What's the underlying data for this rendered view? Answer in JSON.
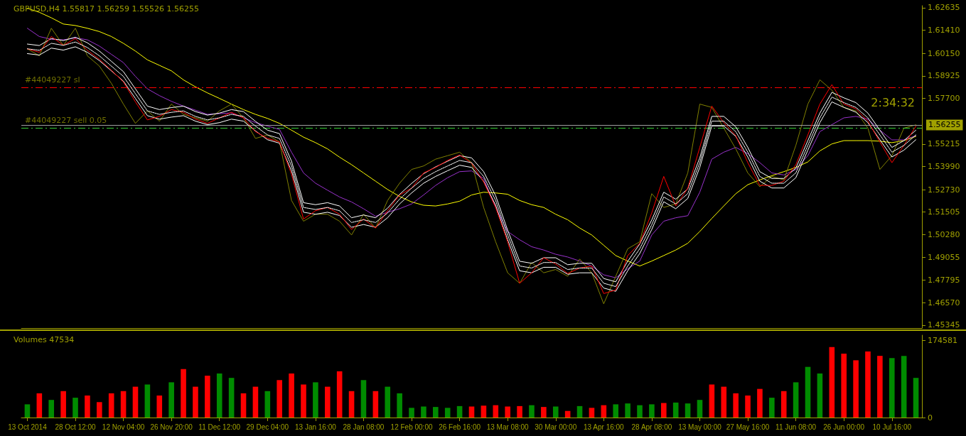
{
  "chart_data": [
    {
      "type": "line",
      "title": "GBPUSD,H4 1.55817 1.56259 1.55526 1.56255",
      "categories": [
        null,
        null,
        null,
        null,
        null,
        null,
        null,
        null,
        null,
        null,
        null,
        null,
        null,
        null,
        null,
        null,
        null,
        null,
        null,
        null,
        null,
        null,
        null,
        null,
        null,
        null,
        null,
        null,
        null,
        null,
        null,
        null,
        null,
        null,
        null,
        null,
        null,
        null,
        null,
        null,
        null,
        null,
        null,
        null,
        null,
        null,
        null,
        null,
        null,
        null,
        null,
        null,
        null,
        null,
        null,
        null,
        null,
        null,
        null,
        null,
        null,
        null,
        null,
        null,
        null,
        null,
        null,
        null,
        null,
        null,
        null,
        null,
        null,
        null,
        null
      ],
      "series": [
        {
          "color": "#ffff00",
          "values": [
            1.6261,
            1.6239,
            1.6209,
            1.6175,
            1.6167,
            1.6152,
            1.6134,
            1.6107,
            1.607,
            1.6028,
            1.598,
            1.595,
            1.592,
            1.5871,
            1.5833,
            1.58,
            1.577,
            1.5739,
            1.5709,
            1.5683,
            1.5661,
            1.5634,
            1.5597,
            1.5559,
            1.5529,
            1.5495,
            1.545,
            1.5409,
            1.5364,
            1.5319,
            1.5274,
            1.5236,
            1.5206,
            1.5188,
            1.5184,
            1.5195,
            1.521,
            1.5244,
            1.5259,
            1.5255,
            1.5248,
            1.5214,
            1.5191,
            1.5176,
            1.5139,
            1.5109,
            1.5064,
            1.5026,
            1.497,
            1.4914,
            1.4884,
            1.4857,
            1.4884,
            1.4914,
            1.4944,
            1.4981,
            1.5045,
            1.5116,
            1.5184,
            1.5251,
            1.53,
            1.5326,
            1.5349,
            1.5371,
            1.5394,
            1.5424,
            1.5484,
            1.5522,
            1.554,
            1.554,
            1.554,
            1.5537,
            1.5529,
            1.554,
            1.5563
          ]
        },
        {
          "color": "#9932cc",
          "values": [
            1.6152,
            1.6107,
            1.6092,
            1.6089,
            1.61,
            1.6089,
            1.6055,
            1.601,
            1.5965,
            1.589,
            1.5822,
            1.5785,
            1.5754,
            1.5728,
            1.5706,
            1.5683,
            1.5687,
            1.5691,
            1.5664,
            1.5638,
            1.5619,
            1.5601,
            1.5477,
            1.5364,
            1.5308,
            1.527,
            1.5233,
            1.5206,
            1.5169,
            1.5128,
            1.515,
            1.5169,
            1.5195,
            1.5244,
            1.5296,
            1.5338,
            1.5371,
            1.5375,
            1.5334,
            1.5176,
            1.5045,
            1.5,
            1.4962,
            1.4944,
            1.4921,
            1.4906,
            1.4884,
            1.4857,
            1.4809,
            1.4793,
            1.4842,
            1.4884,
            1.5026,
            1.5101,
            1.512,
            1.5131,
            1.5259,
            1.5439,
            1.5477,
            1.5503,
            1.5469,
            1.542,
            1.5364,
            1.5353,
            1.5383,
            1.5458,
            1.5589,
            1.5627,
            1.5664,
            1.5672,
            1.5657,
            1.5597,
            1.5544,
            1.5544,
            1.5567
          ]
        },
        {
          "color": "#808000",
          "values": [
            1.604,
            1.6002,
            1.6152,
            1.6059,
            1.6152,
            1.6002,
            1.5946,
            1.5852,
            1.5739,
            1.5634,
            1.5702,
            1.5646,
            1.5739,
            1.5683,
            1.5664,
            1.5646,
            1.5702,
            1.5739,
            1.5664,
            1.5552,
            1.5571,
            1.5533,
            1.5214,
            1.5101,
            1.5139,
            1.5139,
            1.5101,
            1.5026,
            1.5139,
            1.5064,
            1.5214,
            1.5308,
            1.5383,
            1.5402,
            1.5439,
            1.5458,
            1.5477,
            1.542,
            1.5176,
            1.4989,
            1.482,
            1.4763,
            1.4876,
            1.482,
            1.4838,
            1.4801,
            1.4895,
            1.482,
            1.4651,
            1.4801,
            1.4951,
            1.4989,
            1.5251,
            1.5176,
            1.5195,
            1.5364,
            1.5739,
            1.5721,
            1.5608,
            1.5495,
            1.5364,
            1.5289,
            1.5345,
            1.5326,
            1.5514,
            1.5739,
            1.5871,
            1.5815,
            1.5721,
            1.5702,
            1.5608,
            1.5383,
            1.5458,
            1.5608,
            1.5626
          ]
        },
        {
          "color": "#ffffff",
          "values": [
            1.6066,
            1.6058,
            1.6096,
            1.6085,
            1.6103,
            1.6073,
            1.6028,
            1.5972,
            1.5916,
            1.5822,
            1.5728,
            1.5709,
            1.572,
            1.5728,
            1.5698,
            1.5679,
            1.569,
            1.5709,
            1.5698,
            1.5645,
            1.5597,
            1.5578,
            1.5428,
            1.5202,
            1.5191,
            1.5202,
            1.5184,
            1.512,
            1.5135,
            1.512,
            1.5172,
            1.5247,
            1.5307,
            1.536,
            1.5397,
            1.5428,
            1.5458,
            1.5446,
            1.5371,
            1.524,
            1.5052,
            1.4883,
            1.4872,
            1.4902,
            1.4902,
            1.4864,
            1.4872,
            1.4872,
            1.4789,
            1.4771,
            1.4883,
            1.4977,
            1.5108,
            1.5259,
            1.5221,
            1.5277,
            1.5446,
            1.5672,
            1.5672,
            1.5615,
            1.5503,
            1.5371,
            1.5334,
            1.5334,
            1.539,
            1.554,
            1.569,
            1.5803,
            1.5773,
            1.5747,
            1.569,
            1.5597,
            1.5503,
            1.554,
            1.5597
          ]
        },
        {
          "color": "#ffffff",
          "line_style": "dashed",
          "values": [
            1.604,
            1.6032,
            1.607,
            1.6059,
            1.6077,
            1.6047,
            1.6002,
            1.5946,
            1.589,
            1.5796,
            1.5702,
            1.5683,
            1.5694,
            1.5702,
            1.5672,
            1.5653,
            1.5664,
            1.5683,
            1.5672,
            1.5619,
            1.5571,
            1.5552,
            1.5402,
            1.5176,
            1.5165,
            1.5176,
            1.5158,
            1.5094,
            1.5109,
            1.5094,
            1.5146,
            1.5221,
            1.5281,
            1.5334,
            1.5371,
            1.5402,
            1.5432,
            1.542,
            1.5345,
            1.5214,
            1.5026,
            1.4857,
            1.4846,
            1.4876,
            1.4876,
            1.4838,
            1.4846,
            1.4846,
            1.4763,
            1.4745,
            1.4857,
            1.4951,
            1.5082,
            1.5233,
            1.5195,
            1.5251,
            1.542,
            1.5646,
            1.5646,
            1.5589,
            1.5477,
            1.5345,
            1.5308,
            1.5308,
            1.5364,
            1.5514,
            1.5664,
            1.5777,
            1.5747,
            1.5721,
            1.5664,
            1.5571,
            1.5477,
            1.5514,
            1.5571
          ]
        },
        {
          "color": "#ffffff",
          "values": [
            1.6014,
            1.6006,
            1.6044,
            1.6033,
            1.6051,
            1.6021,
            1.5976,
            1.592,
            1.5864,
            1.577,
            1.5676,
            1.5657,
            1.5668,
            1.5676,
            1.5646,
            1.5627,
            1.5638,
            1.5657,
            1.5646,
            1.5593,
            1.5545,
            1.5526,
            1.5376,
            1.515,
            1.5139,
            1.515,
            1.5132,
            1.5068,
            1.5083,
            1.5068,
            1.512,
            1.5195,
            1.5255,
            1.5308,
            1.5345,
            1.5376,
            1.5406,
            1.5394,
            1.5319,
            1.5188,
            1.5,
            1.4831,
            1.482,
            1.485,
            1.485,
            1.4812,
            1.482,
            1.482,
            1.4737,
            1.4719,
            1.4831,
            1.4925,
            1.5056,
            1.5207,
            1.5169,
            1.5225,
            1.5394,
            1.562,
            1.562,
            1.5563,
            1.5451,
            1.5319,
            1.5282,
            1.5282,
            1.5338,
            1.5488,
            1.5638,
            1.5751,
            1.5721,
            1.5695,
            1.5638,
            1.5545,
            1.5451,
            1.5488,
            1.5545
          ]
        },
        {
          "color": "#ff0000",
          "values": [
            1.604,
            1.6021,
            1.6107,
            1.6059,
            1.6096,
            1.6032,
            1.5983,
            1.5923,
            1.586,
            1.5751,
            1.5653,
            1.5672,
            1.5709,
            1.5694,
            1.5657,
            1.5634,
            1.5664,
            1.5694,
            1.5664,
            1.5589,
            1.5552,
            1.5533,
            1.5357,
            1.5113,
            1.5158,
            1.5176,
            1.5139,
            1.5056,
            1.5113,
            1.5064,
            1.5158,
            1.5244,
            1.5281,
            1.5364,
            1.5394,
            1.5432,
            1.5462,
            1.5417,
            1.5315,
            1.5176,
            1.4989,
            1.4763,
            1.482,
            1.4902,
            1.4868,
            1.4816,
            1.4846,
            1.4857,
            1.4707,
            1.4726,
            1.4914,
            1.4981,
            1.5146,
            1.5345,
            1.5184,
            1.5281,
            1.5503,
            1.5728,
            1.5638,
            1.5567,
            1.542,
            1.5296,
            1.5296,
            1.5319,
            1.5409,
            1.5571,
            1.5739,
            1.5845,
            1.5739,
            1.5713,
            1.5646,
            1.5533,
            1.542,
            1.5514,
            1.5619
          ]
        }
      ],
      "ylim": [
        1.4519,
        1.6275
      ],
      "yticks": [
        {
          "value": 1.62635,
          "label": "1.62635"
        },
        {
          "value": 1.6141,
          "label": "1.61410"
        },
        {
          "value": 1.6015,
          "label": "1.60150"
        },
        {
          "value": 1.58925,
          "label": "1.58925"
        },
        {
          "value": 1.577,
          "label": "1.57700"
        },
        {
          "value": 1.55215,
          "label": "1.55215"
        },
        {
          "value": 1.5399,
          "label": "1.53990"
        },
        {
          "value": 1.5273,
          "label": "1.52730"
        },
        {
          "value": 1.51505,
          "label": "1.51505"
        },
        {
          "value": 1.5028,
          "label": "1.50280"
        },
        {
          "value": 1.49055,
          "label": "1.49055"
        },
        {
          "value": 1.47795,
          "label": "1.47795"
        },
        {
          "value": 1.4657,
          "label": "1.46570"
        },
        {
          "value": 1.45345,
          "label": "1.45345"
        }
      ],
      "ref_lines": [
        {
          "axis": "y",
          "value": 1.583,
          "label": "#44049227 sl",
          "color": "#ff0000",
          "line_style": "dashed"
        },
        {
          "axis": "y",
          "value": 1.56255,
          "label": "1.56255",
          "color": "#a0a0a0",
          "line_style": "solid"
        },
        {
          "axis": "y",
          "value": 1.5608,
          "label": "#44049227 sell 0.05",
          "color": "#32cd32",
          "line_style": "dashed"
        }
      ],
      "annotations": [
        "2:34:32"
      ],
      "tick_labels": "y"
    },
    {
      "type": "bar",
      "title": "Volumes 47534",
      "categories": [
        "13 Oct 2014",
        null,
        null,
        null,
        "28 Oct 12:00",
        null,
        null,
        null,
        "12 Nov 04:00",
        null,
        null,
        null,
        "26 Nov 20:00",
        null,
        null,
        null,
        "11 Dec 12:00",
        null,
        null,
        null,
        "29 Dec 04:00",
        null,
        null,
        null,
        "13 Jan 16:00",
        null,
        null,
        null,
        "28 Jan 08:00",
        null,
        null,
        null,
        "12 Feb 00:00",
        null,
        null,
        null,
        "26 Feb 16:00",
        null,
        null,
        null,
        "13 Mar 08:00",
        null,
        null,
        null,
        "30 Mar 00:00",
        null,
        null,
        null,
        "13 Apr 16:00",
        null,
        null,
        null,
        "28 Apr 08:00",
        null,
        null,
        null,
        "13 May 00:00",
        null,
        null,
        null,
        "27 May 16:00",
        null,
        null,
        null,
        "11 Jun 08:00",
        null,
        null,
        null,
        "26 Jun 00:00",
        null,
        null,
        null,
        "10 Jul 16:00",
        null,
        null
      ],
      "values": [
        30000,
        55000,
        40000,
        60000,
        45000,
        50000,
        35000,
        55000,
        60000,
        70000,
        75000,
        50000,
        80000,
        110000,
        70000,
        95000,
        100000,
        90000,
        55000,
        70000,
        60000,
        85000,
        100000,
        75000,
        80000,
        70000,
        105000,
        60000,
        85000,
        60000,
        70000,
        55000,
        22000,
        25000,
        24000,
        22000,
        26000,
        25000,
        27000,
        28000,
        25000,
        26000,
        28000,
        24000,
        25000,
        15000,
        26000,
        22000,
        28000,
        30000,
        32000,
        28000,
        30000,
        33000,
        34000,
        32000,
        40000,
        75000,
        70000,
        55000,
        50000,
        65000,
        45000,
        60000,
        80000,
        115000,
        100000,
        160000,
        145000,
        130000,
        150000,
        140000,
        135000,
        140000,
        90000
      ],
      "colors": [
        "#008c00",
        "#ff0000",
        "#008c00",
        "#ff0000",
        "#008c00",
        "#ff0000",
        "#ff0000",
        "#ff0000",
        "#ff0000",
        "#ff0000",
        "#008c00",
        "#ff0000",
        "#008c00",
        "#ff0000",
        "#ff0000",
        "#ff0000",
        "#008c00",
        "#008c00",
        "#ff0000",
        "#ff0000",
        "#008c00",
        "#ff0000",
        "#ff0000",
        "#ff0000",
        "#008c00",
        "#ff0000",
        "#ff0000",
        "#ff0000",
        "#008c00",
        "#ff0000",
        "#008c00",
        "#008c00",
        "#008c00",
        "#008c00",
        "#008c00",
        "#008c00",
        "#008c00",
        "#ff0000",
        "#ff0000",
        "#ff0000",
        "#ff0000",
        "#ff0000",
        "#008c00",
        "#ff0000",
        "#008c00",
        "#ff0000",
        "#008c00",
        "#ff0000",
        "#ff0000",
        "#008c00",
        "#008c00",
        "#008c00",
        "#008c00",
        "#ff0000",
        "#008c00",
        "#008c00",
        "#008c00",
        "#ff0000",
        "#ff0000",
        "#ff0000",
        "#ff0000",
        "#ff0000",
        "#008c00",
        "#ff0000",
        "#008c00",
        "#008c00",
        "#008c00",
        "#ff0000",
        "#ff0000",
        "#ff0000",
        "#ff0000",
        "#ff0000",
        "#008c00",
        "#008c00",
        "#008c00"
      ],
      "ylim": [
        0,
        187000
      ],
      "yticks": [
        0,
        174581
      ]
    }
  ]
}
